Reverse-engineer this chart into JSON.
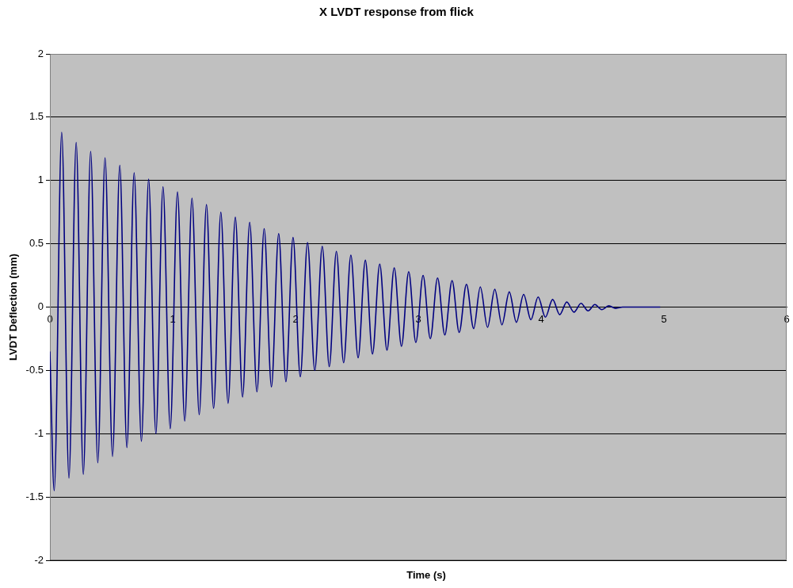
{
  "chart_data": {
    "type": "line",
    "title": "X LVDT response from flick",
    "xlabel": "Time (s)",
    "ylabel": "LVDT Deflection (mm)",
    "xlim": [
      0,
      6
    ],
    "xticks": [
      0,
      1,
      2,
      3,
      4,
      5,
      6
    ],
    "ylim": [
      -2,
      2
    ],
    "yticks": [
      -2,
      -1.5,
      -1,
      -0.5,
      0,
      0.5,
      1,
      1.5,
      2
    ],
    "grid": "y",
    "legend": false,
    "marker": "none",
    "line_style": "solid",
    "series": [
      {
        "color": "#000080",
        "x": [
          0,
          0.035,
          0.096,
          0.155,
          0.214,
          0.272,
          0.332,
          0.39,
          0.449,
          0.51,
          0.569,
          0.627,
          0.686,
          0.745,
          0.804,
          0.863,
          0.921,
          0.98,
          1.039,
          1.098,
          1.157,
          1.216,
          1.275,
          1.333,
          1.392,
          1.451,
          1.51,
          1.569,
          1.627,
          1.686,
          1.745,
          1.804,
          1.863,
          1.922,
          1.98,
          2.039,
          2.098,
          2.157,
          2.218,
          2.275,
          2.333,
          2.392,
          2.451,
          2.51,
          2.569,
          2.627,
          2.686,
          2.745,
          2.804,
          2.863,
          2.922,
          2.98,
          3.039,
          3.098,
          3.157,
          3.216,
          3.275,
          3.333,
          3.392,
          3.451,
          3.505,
          3.564,
          3.623,
          3.681,
          3.741,
          3.799,
          3.858,
          3.917,
          3.976,
          4.035,
          4.094,
          4.152,
          4.209,
          4.268,
          4.325,
          4.383,
          4.438,
          4.494,
          4.551,
          4.608,
          4.664,
          4.97
        ],
        "values": [
          -0.35,
          -1.45,
          1.38,
          -1.35,
          1.3,
          -1.32,
          1.23,
          -1.23,
          1.18,
          -1.18,
          1.12,
          -1.11,
          1.06,
          -1.06,
          1.01,
          -1.0,
          0.95,
          -0.96,
          0.91,
          -0.9,
          0.86,
          -0.85,
          0.81,
          -0.8,
          0.75,
          -0.76,
          0.71,
          -0.71,
          0.67,
          -0.67,
          0.62,
          -0.63,
          0.58,
          -0.59,
          0.55,
          -0.55,
          0.51,
          -0.5,
          0.48,
          -0.47,
          0.44,
          -0.44,
          0.41,
          -0.4,
          0.37,
          -0.37,
          0.34,
          -0.34,
          0.31,
          -0.31,
          0.28,
          -0.28,
          0.25,
          -0.25,
          0.23,
          -0.22,
          0.21,
          -0.2,
          0.18,
          -0.17,
          0.16,
          -0.16,
          0.14,
          -0.14,
          0.12,
          -0.12,
          0.1,
          -0.1,
          0.08,
          -0.08,
          0.06,
          -0.06,
          0.04,
          -0.04,
          0.03,
          -0.03,
          0.02,
          -0.02,
          0.01,
          -0.01,
          0,
          0
        ]
      }
    ]
  }
}
